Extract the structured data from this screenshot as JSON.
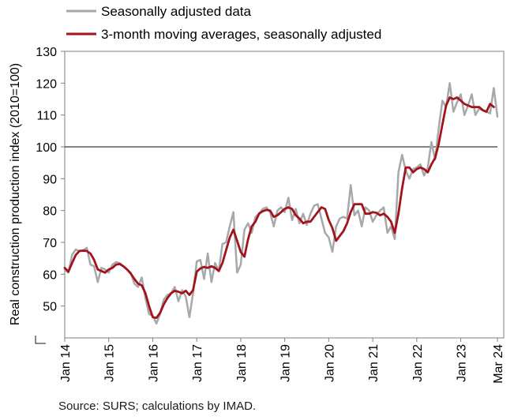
{
  "chart_data": {
    "type": "line",
    "ylabel": "Real construction production index (2010=100)",
    "ylim": [
      40,
      130
    ],
    "yticks": [
      50,
      60,
      70,
      80,
      90,
      100,
      110,
      120,
      130
    ],
    "xticks": [
      "Jan 14",
      "Jan 15",
      "Jan 16",
      "Jan 17",
      "Jan 18",
      "Jan 19",
      "Jan 20",
      "Jan 21",
      "Jan 22",
      "Jan 23",
      "Mar 24"
    ],
    "reference_line": 100,
    "legend_position": "top",
    "grid": false,
    "x_start": "Jan 14",
    "x_end": "Mar 24",
    "series": [
      {
        "name": "Seasonally adjusted data",
        "color": "#a6a8ab",
        "values": [
          61.5,
          60.5,
          66.0,
          67.8,
          67.2,
          67.5,
          68.3,
          63.0,
          62.5,
          57.5,
          62.0,
          61.5,
          60.5,
          63.0,
          63.8,
          63.5,
          62.5,
          61.5,
          60.5,
          57.0,
          56.0,
          59.0,
          52.5,
          47.5,
          47.0,
          44.5,
          47.5,
          52.0,
          53.5,
          54.0,
          56.0,
          51.5,
          55.0,
          53.0,
          46.5,
          54.0,
          64.0,
          64.5,
          58.5,
          66.5,
          57.5,
          63.5,
          61.0,
          69.5,
          70.0,
          75.0,
          79.5,
          60.5,
          63.0,
          74.0,
          76.0,
          73.0,
          78.0,
          79.0,
          80.5,
          81.0,
          79.5,
          75.0,
          80.0,
          81.0,
          79.5,
          84.0,
          77.0,
          80.5,
          76.0,
          79.0,
          75.5,
          79.0,
          81.5,
          82.0,
          77.5,
          73.0,
          71.5,
          67.0,
          75.0,
          77.5,
          78.0,
          77.5,
          88.0,
          78.5,
          80.0,
          75.0,
          81.0,
          80.0,
          76.5,
          78.5,
          80.0,
          81.0,
          73.0,
          75.0,
          71.0,
          92.0,
          97.5,
          92.5,
          90.0,
          93.0,
          93.5,
          94.5,
          91.0,
          93.5,
          101.5,
          96.0,
          106.0,
          114.5,
          112.5,
          120.0,
          111.0,
          114.0,
          116.5,
          110.0,
          113.0,
          116.5,
          110.0,
          112.0,
          111.5,
          111.0,
          110.5,
          118.5,
          109.5
        ]
      },
      {
        "name": "3-month moving averages, seasonally adjusted",
        "color": "#a3131c",
        "values": [
          62.0,
          60.8,
          63.5,
          66.0,
          67.3,
          67.4,
          67.3,
          66.5,
          64.5,
          61.5,
          61.0,
          60.5,
          61.5,
          62.0,
          63.0,
          63.2,
          62.5,
          61.5,
          60.2,
          58.5,
          57.0,
          56.5,
          54.0,
          50.0,
          46.5,
          46.3,
          47.8,
          50.5,
          52.5,
          54.0,
          54.8,
          54.5,
          54.0,
          54.8,
          53.5,
          55.0,
          60.8,
          61.8,
          62.3,
          62.0,
          62.5,
          62.0,
          61.0,
          63.5,
          67.5,
          71.5,
          74.0,
          70.5,
          67.0,
          65.5,
          71.0,
          75.0,
          76.5,
          79.0,
          79.8,
          80.2,
          80.0,
          78.0,
          78.5,
          79.5,
          80.5,
          81.0,
          80.5,
          78.5,
          77.5,
          76.0,
          76.5,
          76.5,
          78.0,
          79.5,
          81.0,
          80.5,
          77.0,
          74.5,
          70.5,
          72.0,
          73.5,
          76.0,
          79.5,
          82.0,
          82.0,
          82.0,
          79.0,
          79.0,
          79.5,
          79.3,
          78.5,
          79.0,
          78.0,
          76.5,
          73.0,
          79.0,
          87.0,
          93.5,
          93.5,
          92.0,
          93.0,
          93.5,
          93.0,
          92.0,
          94.5,
          96.5,
          101.0,
          107.0,
          113.0,
          115.5,
          115.0,
          115.5,
          114.5,
          113.5,
          113.0,
          112.5,
          112.5,
          112.5,
          111.5,
          111.0,
          113.5,
          112.5
        ]
      }
    ]
  },
  "source": "Source: SURS; calculations by IMAD."
}
